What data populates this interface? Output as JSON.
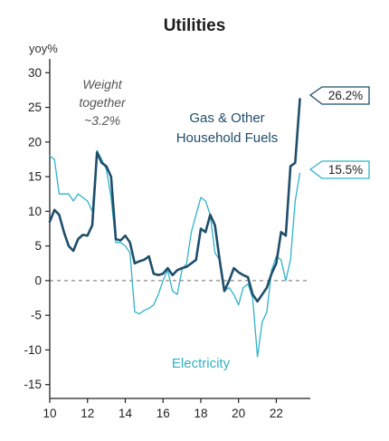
{
  "chart_data": {
    "type": "line",
    "title": "Utilities",
    "ylabel": "yoy%",
    "xlabel": "",
    "xlim": [
      10,
      23.8
    ],
    "ylim": [
      -17,
      32
    ],
    "xticks": [
      10,
      12,
      14,
      16,
      18,
      20,
      22
    ],
    "yticks": [
      -15,
      -10,
      -5,
      0,
      5,
      10,
      15,
      20,
      25,
      30
    ],
    "xtick_labels": [
      "10",
      "12",
      "14",
      "16",
      "18",
      "20",
      "22"
    ],
    "ytick_labels": [
      "-15",
      "-10",
      "-5",
      "0",
      "5",
      "10",
      "15",
      "20",
      "25",
      "30"
    ],
    "zero_line": "dashed",
    "annotations": {
      "weight_line1": "Weight",
      "weight_line2": "together",
      "weight_line3": "~3.2%",
      "gas_line1": "Gas & Other",
      "gas_line2": "Household Fuels",
      "electricity": "Electricity"
    },
    "series": [
      {
        "name": "Gas & Other Household Fuels",
        "color": "#1f4e6b",
        "end_label": "26.2%",
        "points": [
          [
            10.0,
            8.5
          ],
          [
            10.25,
            10.2
          ],
          [
            10.5,
            9.5
          ],
          [
            10.75,
            7.0
          ],
          [
            11.0,
            5.0
          ],
          [
            11.25,
            4.3
          ],
          [
            11.5,
            6.0
          ],
          [
            11.75,
            6.6
          ],
          [
            12.0,
            6.5
          ],
          [
            12.25,
            8.0
          ],
          [
            12.5,
            18.5
          ],
          [
            12.75,
            17.0
          ],
          [
            13.0,
            16.5
          ],
          [
            13.25,
            15.0
          ],
          [
            13.5,
            6.0
          ],
          [
            13.75,
            5.8
          ],
          [
            14.0,
            6.5
          ],
          [
            14.25,
            5.5
          ],
          [
            14.5,
            2.5
          ],
          [
            14.75,
            2.8
          ],
          [
            15.0,
            3.0
          ],
          [
            15.25,
            3.5
          ],
          [
            15.5,
            1.0
          ],
          [
            15.75,
            0.8
          ],
          [
            16.0,
            1.0
          ],
          [
            16.25,
            1.8
          ],
          [
            16.5,
            0.8
          ],
          [
            16.75,
            1.5
          ],
          [
            17.0,
            1.8
          ],
          [
            17.25,
            2.0
          ],
          [
            17.5,
            2.5
          ],
          [
            17.75,
            3.0
          ],
          [
            18.0,
            7.5
          ],
          [
            18.25,
            7.0
          ],
          [
            18.5,
            9.5
          ],
          [
            18.75,
            8.0
          ],
          [
            19.0,
            3.0
          ],
          [
            19.25,
            -1.5
          ],
          [
            19.5,
            0.0
          ],
          [
            19.75,
            1.8
          ],
          [
            20.0,
            1.2
          ],
          [
            20.25,
            0.8
          ],
          [
            20.5,
            0.5
          ],
          [
            20.75,
            -2.0
          ],
          [
            21.0,
            -3.0
          ],
          [
            21.25,
            -2.0
          ],
          [
            21.5,
            -1.0
          ],
          [
            21.75,
            1.0
          ],
          [
            22.0,
            2.5
          ],
          [
            22.25,
            7.0
          ],
          [
            22.5,
            6.5
          ],
          [
            22.75,
            16.5
          ],
          [
            23.0,
            17.0
          ],
          [
            23.25,
            26.2
          ]
        ]
      },
      {
        "name": "Electricity",
        "color": "#2fb3c9",
        "end_label": "15.5%",
        "points": [
          [
            10.0,
            18.0
          ],
          [
            10.25,
            17.5
          ],
          [
            10.5,
            12.5
          ],
          [
            10.75,
            12.5
          ],
          [
            11.0,
            12.5
          ],
          [
            11.25,
            11.5
          ],
          [
            11.5,
            12.5
          ],
          [
            11.75,
            12.0
          ],
          [
            12.0,
            11.5
          ],
          [
            12.25,
            10.0
          ],
          [
            12.5,
            18.8
          ],
          [
            12.75,
            17.5
          ],
          [
            13.0,
            16.0
          ],
          [
            13.25,
            12.0
          ],
          [
            13.5,
            5.5
          ],
          [
            13.75,
            5.5
          ],
          [
            14.0,
            5.0
          ],
          [
            14.25,
            4.0
          ],
          [
            14.5,
            -4.5
          ],
          [
            14.75,
            -4.8
          ],
          [
            15.0,
            -4.3
          ],
          [
            15.25,
            -4.0
          ],
          [
            15.5,
            -3.5
          ],
          [
            15.75,
            -2.0
          ],
          [
            16.0,
            0.0
          ],
          [
            16.25,
            1.5
          ],
          [
            16.5,
            -1.5
          ],
          [
            16.75,
            -2.0
          ],
          [
            17.0,
            1.5
          ],
          [
            17.25,
            2.5
          ],
          [
            17.5,
            7.0
          ],
          [
            17.75,
            9.5
          ],
          [
            18.0,
            12.0
          ],
          [
            18.25,
            11.5
          ],
          [
            18.5,
            9.5
          ],
          [
            18.75,
            4.0
          ],
          [
            19.0,
            3.0
          ],
          [
            19.25,
            -1.5
          ],
          [
            19.5,
            -1.0
          ],
          [
            19.75,
            -2.0
          ],
          [
            20.0,
            -3.5
          ],
          [
            20.25,
            -1.0
          ],
          [
            20.5,
            -0.5
          ],
          [
            20.75,
            -2.5
          ],
          [
            21.0,
            -11.0
          ],
          [
            21.25,
            -6.0
          ],
          [
            21.5,
            -4.5
          ],
          [
            21.75,
            1.5
          ],
          [
            22.0,
            3.5
          ],
          [
            22.25,
            3.0
          ],
          [
            22.5,
            0.0
          ],
          [
            22.75,
            3.0
          ],
          [
            23.0,
            11.5
          ],
          [
            23.25,
            15.5
          ]
        ]
      }
    ]
  }
}
